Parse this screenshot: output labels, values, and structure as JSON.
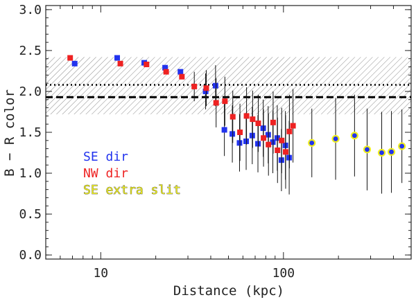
{
  "chart_data": {
    "type": "scatter",
    "xlabel": "Distance (kpc)",
    "ylabel": "B − R color",
    "x_scale": "log",
    "xlim": [
      5,
      500
    ],
    "ylim": [
      -0.05,
      3.05
    ],
    "x_major_ticks": [
      10,
      100
    ],
    "x_tick_labels": [
      "10",
      "100"
    ],
    "y_ticks": [
      0.0,
      0.5,
      1.0,
      1.5,
      2.0,
      2.5,
      3.0
    ],
    "y_tick_labels": [
      "0.0",
      "0.5",
      "1.0",
      "1.5",
      "2.0",
      "2.5",
      "3.0"
    ],
    "bands": [
      {
        "name": "hatched-band",
        "y_low": 1.72,
        "y_high": 2.42
      }
    ],
    "reference_lines": [
      {
        "name": "dotted-line",
        "y": 2.08,
        "style": "dotted"
      },
      {
        "name": "dashed-line",
        "y": 1.93,
        "style": "dashed"
      }
    ],
    "legend": [
      {
        "label": "SE dir",
        "color": "#2233ee"
      },
      {
        "label": "NW dir",
        "color": "#ee2222"
      },
      {
        "label": "SE extra slit",
        "color": "#eeee22"
      }
    ],
    "series": [
      {
        "name": "SE dir",
        "marker": "square",
        "color": "#2233ee",
        "points": [
          {
            "x": 7.2,
            "y": 2.34
          },
          {
            "x": 12.3,
            "y": 2.41
          },
          {
            "x": 17.3,
            "y": 2.35
          },
          {
            "x": 22.5,
            "y": 2.29
          },
          {
            "x": 27.3,
            "y": 2.24
          },
          {
            "x": 37.5,
            "y": 2.0,
            "yerr": 0.22
          },
          {
            "x": 42.5,
            "y": 2.07,
            "yerr": 0.25
          },
          {
            "x": 47.5,
            "y": 1.53,
            "yerr": 0.32
          },
          {
            "x": 52.5,
            "y": 1.48,
            "yerr": 0.35
          },
          {
            "x": 57.5,
            "y": 1.37,
            "yerr": 0.35
          },
          {
            "x": 62.5,
            "y": 1.39,
            "yerr": 0.35
          },
          {
            "x": 67.5,
            "y": 1.46,
            "yerr": 0.35
          },
          {
            "x": 72.5,
            "y": 1.36,
            "yerr": 0.35
          },
          {
            "x": 77.5,
            "y": 1.55,
            "yerr": 0.35
          },
          {
            "x": 82.5,
            "y": 1.47,
            "yerr": 0.35
          },
          {
            "x": 87.5,
            "y": 1.38,
            "yerr": 0.38
          },
          {
            "x": 92.5,
            "y": 1.43,
            "yerr": 0.4
          },
          {
            "x": 97.5,
            "y": 1.16,
            "yerr": 0.38
          },
          {
            "x": 102.5,
            "y": 1.34,
            "yerr": 0.42
          },
          {
            "x": 107.5,
            "y": 1.19,
            "yerr": 0.45
          }
        ]
      },
      {
        "name": "NW dir",
        "marker": "square",
        "color": "#ee2222",
        "points": [
          {
            "x": 6.8,
            "y": 2.41
          },
          {
            "x": 12.8,
            "y": 2.34
          },
          {
            "x": 17.8,
            "y": 2.33
          },
          {
            "x": 22.8,
            "y": 2.24
          },
          {
            "x": 27.8,
            "y": 2.18
          },
          {
            "x": 32.5,
            "y": 2.06,
            "yerr": 0.18
          },
          {
            "x": 37.8,
            "y": 2.04,
            "yerr": 0.22
          },
          {
            "x": 42.8,
            "y": 1.86,
            "yerr": 0.3
          },
          {
            "x": 47.8,
            "y": 1.88,
            "yerr": 0.3
          },
          {
            "x": 52.8,
            "y": 1.69,
            "yerr": 0.32
          },
          {
            "x": 57.8,
            "y": 1.5,
            "yerr": 0.35
          },
          {
            "x": 62.8,
            "y": 1.7,
            "yerr": 0.35
          },
          {
            "x": 67.8,
            "y": 1.66,
            "yerr": 0.35
          },
          {
            "x": 72.8,
            "y": 1.61,
            "yerr": 0.35
          },
          {
            "x": 77.8,
            "y": 1.43,
            "yerr": 0.35
          },
          {
            "x": 82.8,
            "y": 1.35,
            "yerr": 0.38
          },
          {
            "x": 87.8,
            "y": 1.62,
            "yerr": 0.38
          },
          {
            "x": 92.8,
            "y": 1.28,
            "yerr": 0.4
          },
          {
            "x": 97.8,
            "y": 1.4,
            "yerr": 0.4
          },
          {
            "x": 102.8,
            "y": 1.26,
            "yerr": 0.45
          },
          {
            "x": 107.8,
            "y": 1.51,
            "yerr": 0.45
          },
          {
            "x": 112.8,
            "y": 1.58,
            "yerr": 0.45
          }
        ]
      },
      {
        "name": "SE extra slit",
        "marker": "circle",
        "color": "#2233ee",
        "edge_color": "#eeee22",
        "points": [
          {
            "x": 143,
            "y": 1.37,
            "yerr": 0.42
          },
          {
            "x": 193,
            "y": 1.42,
            "yerr": 0.5
          },
          {
            "x": 245,
            "y": 1.46,
            "yerr": 0.5
          },
          {
            "x": 287,
            "y": 1.29,
            "yerr": 0.5
          },
          {
            "x": 345,
            "y": 1.25,
            "yerr": 0.5
          },
          {
            "x": 390,
            "y": 1.26,
            "yerr": 0.5
          },
          {
            "x": 445,
            "y": 1.33,
            "yerr": 0.45
          }
        ]
      }
    ]
  }
}
